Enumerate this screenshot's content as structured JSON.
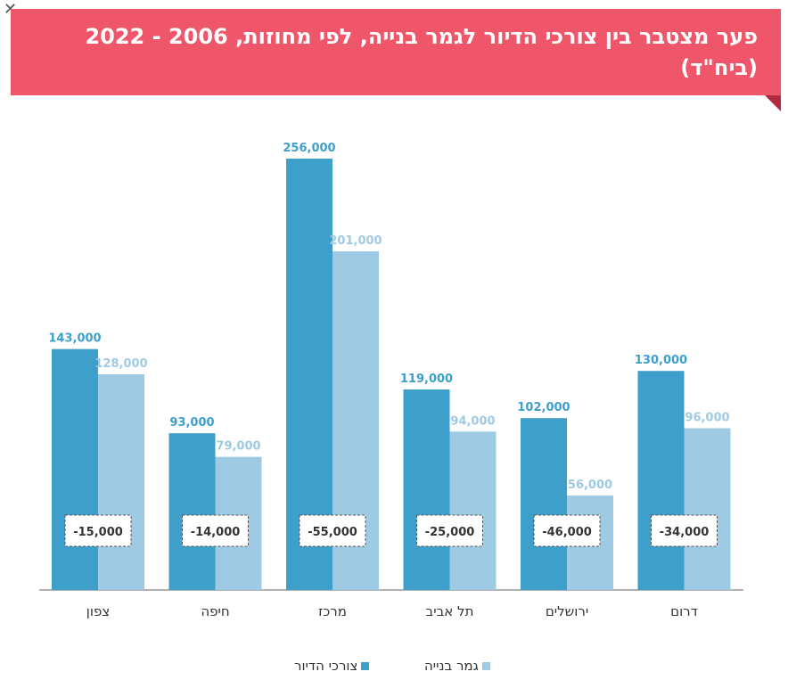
{
  "chart_data": {
    "type": "bar",
    "title": "פער מצטבר בין צורכי הדיור לגמר בנייה, לפי מחוזות, 2006 - 2022 (ביח\"ד)",
    "categories": [
      "צפון",
      "חיפה",
      "מרכז",
      "תל אביב",
      "ירושלים",
      "דרום"
    ],
    "series": [
      {
        "name": "צורכי הדיור",
        "color": "#3f9fcb",
        "values": [
          143000,
          93000,
          256000,
          119000,
          102000,
          130000
        ],
        "labels": [
          "143,000",
          "93,000",
          "256,000",
          "119,000",
          "102,000",
          "130,000"
        ]
      },
      {
        "name": "גמר בנייה",
        "color": "#9fcae3",
        "values": [
          128000,
          79000,
          201000,
          94000,
          56000,
          96000
        ],
        "labels": [
          "128,000",
          "79,000",
          "201,000",
          "94,000",
          "56,000",
          "96,000"
        ]
      }
    ],
    "gaps": [
      -15000,
      -14000,
      -55000,
      -25000,
      -46000,
      -34000
    ],
    "gap_labels": [
      "-15,000",
      "-14,000",
      "-55,000",
      "-25,000",
      "-46,000",
      "-34,000"
    ],
    "ylim": [
      0,
      256000
    ],
    "grid": false,
    "legend_position": "bottom-center"
  }
}
